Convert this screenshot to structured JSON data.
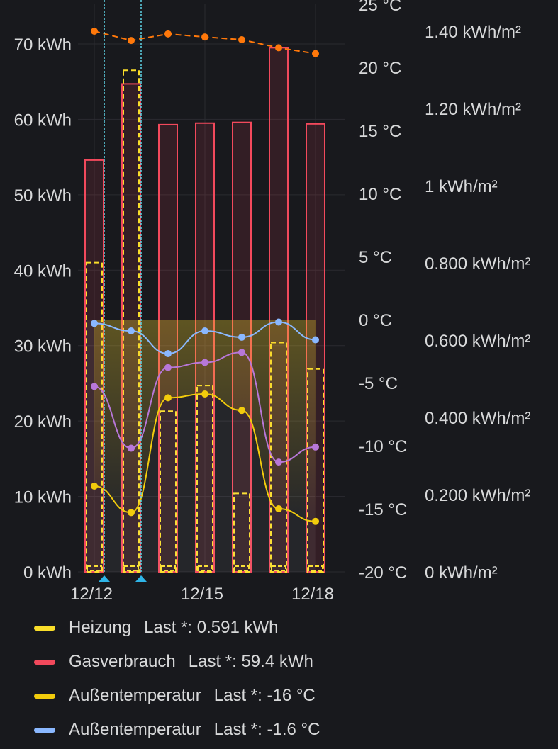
{
  "chart_data": {
    "type": "bar",
    "x_ticks": [
      "12/12",
      "12/15",
      "12/18"
    ],
    "days": [
      "12/12",
      "12/13",
      "12/14",
      "12/15",
      "12/16",
      "12/17",
      "12/18"
    ],
    "left_axis": {
      "unit": "kWh",
      "ylim": [
        0,
        70
      ],
      "ticks": [
        "0 kWh",
        "10 kWh",
        "20 kWh",
        "30 kWh",
        "40 kWh",
        "50 kWh",
        "60 kWh",
        "70 kWh"
      ]
    },
    "mid_axis": {
      "unit": "°C",
      "ylim": [
        -20,
        25
      ],
      "ticks": [
        "-20 °C",
        "-15 °C",
        "-10 °C",
        "-5 °C",
        "0 °C",
        "5 °C",
        "10 °C",
        "15 °C",
        "20 °C",
        "25 °C"
      ]
    },
    "right_axis": {
      "unit": "kWh/m²",
      "ylim": [
        0,
        1.4
      ],
      "ticks": [
        "0 kWh/m²",
        "0.200 kWh/m²",
        "0.400 kWh/m²",
        "0.600 kWh/m²",
        "0.800 kWh/m²",
        "1 kWh/m²",
        "1.20 kWh/m²",
        "1.40 kWh/m²"
      ]
    },
    "series": [
      {
        "name": "Gasverbrauch",
        "kind": "bar",
        "axis": "left",
        "color": "#f2495c",
        "values": [
          54.6,
          64.7,
          59.3,
          59.5,
          59.6,
          69.5,
          59.4
        ]
      },
      {
        "kind": "dashed-bar",
        "axis": "left",
        "color": "#fade2a",
        "values": [
          41.0,
          66.5,
          21.3,
          24.7,
          10.4,
          30.4,
          26.9
        ]
      },
      {
        "name": "Heizung",
        "kind": "bar-base",
        "axis": "left",
        "color": "#fade2a",
        "values": [
          0.6,
          0.6,
          0.6,
          0.6,
          0.6,
          0.6,
          0.591
        ]
      },
      {
        "name": "Außentemperatur",
        "kind": "line",
        "axis": "mid",
        "color": "#f2cc0c",
        "values": [
          -13.2,
          -15.3,
          -6.2,
          -5.9,
          -7.2,
          -15.0,
          -16.0
        ]
      },
      {
        "name": "Außentemperatur",
        "kind": "line",
        "axis": "mid",
        "color": "#8ab8ff",
        "values": [
          -0.3,
          -0.9,
          -2.7,
          -0.9,
          -1.4,
          -0.2,
          -1.6
        ]
      },
      {
        "kind": "line",
        "axis": "mid",
        "color": "#b877d9",
        "values": [
          -5.3,
          -10.2,
          -3.8,
          -3.4,
          -2.6,
          -11.3,
          -10.1
        ]
      },
      {
        "kind": "line",
        "axis": "right",
        "color": "#ff780a",
        "values": [
          1.4,
          1.376,
          1.393,
          1.385,
          1.378,
          1.357,
          1.342
        ]
      }
    ],
    "annotations": [
      "12/12",
      "12/13"
    ],
    "grid": true,
    "legend_position": "bottom"
  },
  "legend": [
    {
      "name": "Heizung",
      "value": "Last *: 0.591 kWh",
      "color": "#fade2a"
    },
    {
      "name": "Gasverbrauch",
      "value": "Last *: 59.4 kWh",
      "color": "#f2495c"
    },
    {
      "name": "Außentemperatur",
      "value": "Last *: -16 °C",
      "color": "#f2cc0c"
    },
    {
      "name": "Außentemperatur",
      "value": "Last *: -1.6 °C",
      "color": "#8ab8ff"
    }
  ]
}
